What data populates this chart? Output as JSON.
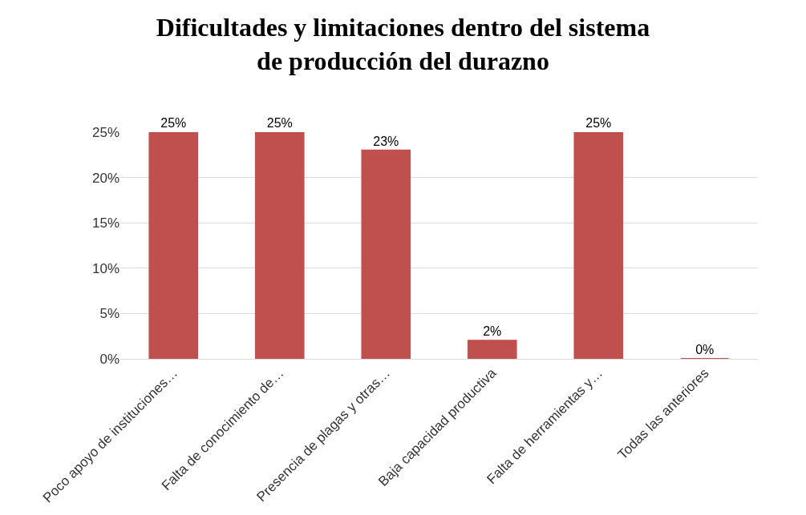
{
  "chart_data": {
    "type": "bar",
    "title": "Dificultades y limitaciones dentro del sistema de producción del durazno",
    "categories": [
      "Poco apoyo de instituciones…",
      "Falta de conocimiento de…",
      "Presencia de plagas y otras…",
      "Baja capacidad productiva",
      "Falta de herramientas y…",
      "Todas las anteriores"
    ],
    "values": [
      25,
      25,
      23,
      2,
      25,
      0
    ],
    "value_labels": [
      "25%",
      "25%",
      "23%",
      "2%",
      "25%",
      "0%"
    ],
    "color": "#c0504d",
    "ylim": [
      0,
      25
    ],
    "yticks": [
      {
        "value": 0,
        "label": "0%"
      },
      {
        "value": 5,
        "label": "5%"
      },
      {
        "value": 10,
        "label": "10%"
      },
      {
        "value": 15,
        "label": "15%"
      },
      {
        "value": 20,
        "label": "20%"
      },
      {
        "value": 25,
        "label": "25%"
      }
    ],
    "grid": "y"
  }
}
